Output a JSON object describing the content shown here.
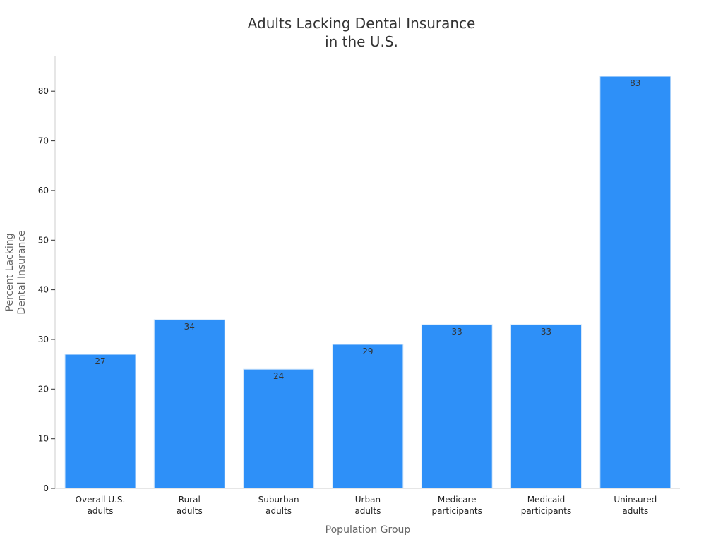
{
  "chart_data": {
    "type": "bar",
    "title": [
      "Adults Lacking Dental Insurance",
      "in the U.S."
    ],
    "xlabel": "Population Group",
    "ylabel": [
      "Percent Lacking",
      "Dental Insurance"
    ],
    "ylim": [
      0,
      87
    ],
    "yticks": [
      0,
      10,
      20,
      30,
      40,
      50,
      60,
      70,
      80
    ],
    "categories": [
      [
        "Overall U.S.",
        "adults"
      ],
      [
        "Rural",
        "adults"
      ],
      [
        "Suburban",
        "adults"
      ],
      [
        "Urban",
        "adults"
      ],
      [
        "Medicare",
        "participants"
      ],
      [
        "Medicaid",
        "participants"
      ],
      [
        "Uninsured",
        "adults"
      ]
    ],
    "values": [
      27,
      34,
      24,
      29,
      33,
      33,
      83
    ],
    "bar_color": "#2e90f8",
    "bar_edge_color": "#d6e8fb",
    "grid": false,
    "legend": null
  }
}
